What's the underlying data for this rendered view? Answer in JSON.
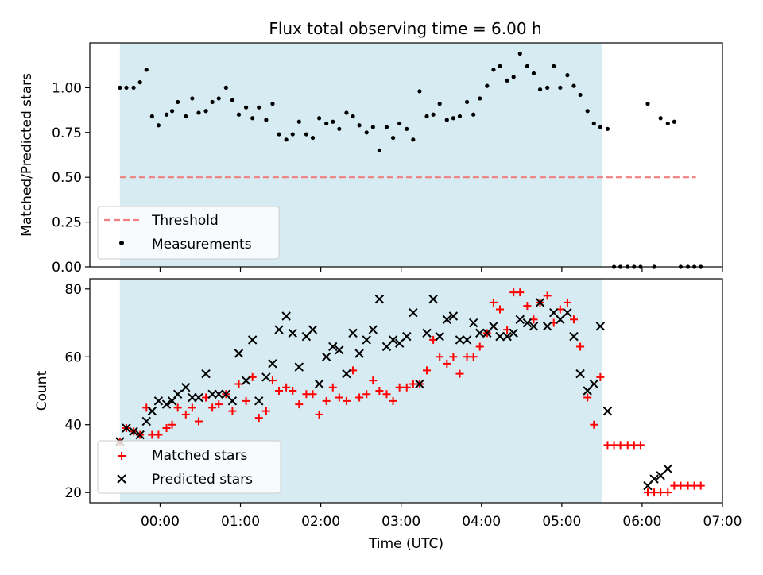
{
  "figure": {
    "title": "Flux total observing time = 6.00 h"
  },
  "chart_data": [
    {
      "type": "scatter",
      "ylabel": "Matched/Predicted stars",
      "xlabel": "",
      "xlim": [
        -0.875,
        7.0
      ],
      "ylim": [
        0,
        1.25
      ],
      "yticks": [
        0.0,
        0.25,
        0.5,
        0.75,
        1.0
      ],
      "ytick_labels": [
        "0.00",
        "0.25",
        "0.50",
        "0.75",
        "1.00"
      ],
      "xticks": [
        0,
        1,
        2,
        3,
        4,
        5,
        6,
        7
      ],
      "shaded_region": {
        "x": [
          -0.5,
          5.5
        ],
        "color": "#add8e6"
      },
      "threshold": {
        "name": "Threshold",
        "y": 0.5,
        "x": [
          -0.5,
          6.67
        ],
        "color": "#f08080"
      },
      "legend": {
        "position": "lower-left",
        "entries": [
          {
            "label": "Threshold",
            "marker": "dashed-line",
            "color": "#f08080"
          },
          {
            "label": "Measurements",
            "marker": "dot",
            "color": "#000000"
          }
        ]
      },
      "series": [
        {
          "name": "Measurements",
          "color": "#000000",
          "marker": "dot",
          "points": [
            [
              -0.5,
              1.0
            ],
            [
              -0.42,
              1.0
            ],
            [
              -0.33,
              1.0
            ],
            [
              -0.25,
              1.03
            ],
            [
              -0.17,
              1.1
            ],
            [
              -0.1,
              0.84
            ],
            [
              -0.02,
              0.79
            ],
            [
              0.08,
              0.85
            ],
            [
              0.15,
              0.87
            ],
            [
              0.22,
              0.92
            ],
            [
              0.32,
              0.84
            ],
            [
              0.4,
              0.94
            ],
            [
              0.48,
              0.86
            ],
            [
              0.57,
              0.87
            ],
            [
              0.65,
              0.92
            ],
            [
              0.73,
              0.94
            ],
            [
              0.82,
              1.0
            ],
            [
              0.9,
              0.93
            ],
            [
              0.98,
              0.85
            ],
            [
              1.07,
              0.89
            ],
            [
              1.15,
              0.83
            ],
            [
              1.23,
              0.89
            ],
            [
              1.32,
              0.82
            ],
            [
              1.4,
              0.91
            ],
            [
              1.48,
              0.74
            ],
            [
              1.57,
              0.71
            ],
            [
              1.65,
              0.74
            ],
            [
              1.73,
              0.81
            ],
            [
              1.82,
              0.74
            ],
            [
              1.9,
              0.72
            ],
            [
              1.98,
              0.83
            ],
            [
              2.07,
              0.8
            ],
            [
              2.15,
              0.81
            ],
            [
              2.23,
              0.77
            ],
            [
              2.32,
              0.86
            ],
            [
              2.4,
              0.84
            ],
            [
              2.48,
              0.79
            ],
            [
              2.57,
              0.75
            ],
            [
              2.65,
              0.78
            ],
            [
              2.73,
              0.65
            ],
            [
              2.82,
              0.78
            ],
            [
              2.9,
              0.72
            ],
            [
              2.98,
              0.8
            ],
            [
              3.07,
              0.77
            ],
            [
              3.15,
              0.71
            ],
            [
              3.23,
              0.98
            ],
            [
              3.32,
              0.84
            ],
            [
              3.4,
              0.85
            ],
            [
              3.48,
              0.91
            ],
            [
              3.57,
              0.82
            ],
            [
              3.65,
              0.83
            ],
            [
              3.73,
              0.84
            ],
            [
              3.82,
              0.92
            ],
            [
              3.9,
              0.85
            ],
            [
              3.98,
              0.94
            ],
            [
              4.07,
              1.01
            ],
            [
              4.15,
              1.1
            ],
            [
              4.23,
              1.12
            ],
            [
              4.32,
              1.04
            ],
            [
              4.4,
              1.06
            ],
            [
              4.48,
              1.19
            ],
            [
              4.57,
              1.12
            ],
            [
              4.65,
              1.08
            ],
            [
              4.73,
              0.99
            ],
            [
              4.82,
              1.0
            ],
            [
              4.9,
              1.12
            ],
            [
              4.98,
              1.0
            ],
            [
              5.07,
              1.07
            ],
            [
              5.15,
              1.01
            ],
            [
              5.23,
              0.96
            ],
            [
              5.32,
              0.87
            ],
            [
              5.4,
              0.8
            ],
            [
              5.48,
              0.78
            ],
            [
              5.57,
              0.77
            ],
            [
              5.65,
              0.0
            ],
            [
              5.73,
              0.0
            ],
            [
              5.82,
              0.0
            ],
            [
              5.9,
              0.0
            ],
            [
              5.98,
              0.0
            ],
            [
              6.07,
              0.91
            ],
            [
              6.15,
              0.0
            ],
            [
              6.23,
              0.83
            ],
            [
              6.32,
              0.8
            ],
            [
              6.4,
              0.81
            ],
            [
              6.48,
              0.0
            ],
            [
              6.57,
              0.0
            ],
            [
              6.65,
              0.0
            ],
            [
              6.73,
              0.0
            ]
          ]
        }
      ]
    },
    {
      "type": "scatter",
      "xlabel": "Time (UTC)",
      "ylabel": "Count",
      "xlim": [
        -0.875,
        7.0
      ],
      "ylim": [
        17,
        83
      ],
      "yticks": [
        20,
        40,
        60,
        80
      ],
      "xticks": [
        0,
        1,
        2,
        3,
        4,
        5,
        6,
        7
      ],
      "xtick_labels": [
        "00:00",
        "01:00",
        "02:00",
        "03:00",
        "04:00",
        "05:00",
        "06:00",
        "07:00"
      ],
      "shaded_region": {
        "x": [
          -0.5,
          5.5
        ],
        "color": "#add8e6"
      },
      "legend": {
        "position": "lower-left",
        "entries": [
          {
            "label": "Matched stars",
            "marker": "plus",
            "color": "#ff0000"
          },
          {
            "label": "Predicted stars",
            "marker": "x",
            "color": "#000000"
          }
        ]
      },
      "series": [
        {
          "name": "Matched stars",
          "color": "#ff0000",
          "marker": "plus",
          "points": [
            [
              -0.5,
              35
            ],
            [
              -0.42,
              39
            ],
            [
              -0.33,
              38
            ],
            [
              -0.25,
              37
            ],
            [
              -0.17,
              45
            ],
            [
              -0.1,
              37
            ],
            [
              -0.02,
              37
            ],
            [
              0.08,
              39
            ],
            [
              0.15,
              40
            ],
            [
              0.22,
              45
            ],
            [
              0.32,
              43
            ],
            [
              0.4,
              45
            ],
            [
              0.48,
              41
            ],
            [
              0.57,
              48
            ],
            [
              0.65,
              45
            ],
            [
              0.73,
              46
            ],
            [
              0.82,
              49
            ],
            [
              0.9,
              44
            ],
            [
              0.98,
              52
            ],
            [
              1.07,
              47
            ],
            [
              1.15,
              54
            ],
            [
              1.23,
              42
            ],
            [
              1.32,
              44
            ],
            [
              1.4,
              53
            ],
            [
              1.48,
              50
            ],
            [
              1.57,
              51
            ],
            [
              1.65,
              50
            ],
            [
              1.73,
              46
            ],
            [
              1.82,
              49
            ],
            [
              1.9,
              49
            ],
            [
              1.98,
              43
            ],
            [
              2.07,
              47
            ],
            [
              2.15,
              51
            ],
            [
              2.23,
              48
            ],
            [
              2.32,
              47
            ],
            [
              2.4,
              56
            ],
            [
              2.48,
              48
            ],
            [
              2.57,
              49
            ],
            [
              2.65,
              53
            ],
            [
              2.73,
              50
            ],
            [
              2.82,
              49
            ],
            [
              2.9,
              47
            ],
            [
              2.98,
              51
            ],
            [
              3.07,
              51
            ],
            [
              3.15,
              52
            ],
            [
              3.23,
              52
            ],
            [
              3.32,
              56
            ],
            [
              3.4,
              65
            ],
            [
              3.48,
              60
            ],
            [
              3.57,
              58
            ],
            [
              3.65,
              60
            ],
            [
              3.73,
              55
            ],
            [
              3.82,
              60
            ],
            [
              3.9,
              60
            ],
            [
              3.98,
              63
            ],
            [
              4.07,
              67
            ],
            [
              4.15,
              76
            ],
            [
              4.23,
              74
            ],
            [
              4.32,
              68
            ],
            [
              4.4,
              79
            ],
            [
              4.48,
              79
            ],
            [
              4.57,
              75
            ],
            [
              4.65,
              71
            ],
            [
              4.73,
              76
            ],
            [
              4.82,
              78
            ],
            [
              4.9,
              70
            ],
            [
              4.98,
              74
            ],
            [
              5.07,
              76
            ],
            [
              5.15,
              71
            ],
            [
              5.23,
              63
            ],
            [
              5.32,
              48
            ],
            [
              5.4,
              40
            ],
            [
              5.48,
              54
            ],
            [
              5.57,
              34
            ],
            [
              5.65,
              34
            ],
            [
              5.73,
              34
            ],
            [
              5.82,
              34
            ],
            [
              5.9,
              34
            ],
            [
              5.98,
              34
            ],
            [
              6.07,
              20
            ],
            [
              6.15,
              20
            ],
            [
              6.23,
              20
            ],
            [
              6.32,
              20
            ],
            [
              6.4,
              22
            ],
            [
              6.48,
              22
            ],
            [
              6.57,
              22
            ],
            [
              6.65,
              22
            ],
            [
              6.73,
              22
            ]
          ]
        },
        {
          "name": "Predicted stars",
          "color": "#000000",
          "marker": "x",
          "points": [
            [
              -0.5,
              35
            ],
            [
              -0.42,
              39
            ],
            [
              -0.33,
              38
            ],
            [
              -0.25,
              37
            ],
            [
              -0.17,
              41
            ],
            [
              -0.1,
              44
            ],
            [
              -0.02,
              47
            ],
            [
              0.08,
              46
            ],
            [
              0.15,
              47
            ],
            [
              0.22,
              49
            ],
            [
              0.32,
              51
            ],
            [
              0.4,
              48
            ],
            [
              0.48,
              48
            ],
            [
              0.57,
              55
            ],
            [
              0.65,
              49
            ],
            [
              0.73,
              49
            ],
            [
              0.82,
              49
            ],
            [
              0.9,
              47
            ],
            [
              0.98,
              61
            ],
            [
              1.07,
              53
            ],
            [
              1.15,
              65
            ],
            [
              1.23,
              47
            ],
            [
              1.32,
              54
            ],
            [
              1.4,
              58
            ],
            [
              1.48,
              68
            ],
            [
              1.57,
              72
            ],
            [
              1.65,
              67
            ],
            [
              1.73,
              57
            ],
            [
              1.82,
              66
            ],
            [
              1.9,
              68
            ],
            [
              1.98,
              52
            ],
            [
              2.07,
              60
            ],
            [
              2.15,
              63
            ],
            [
              2.23,
              62
            ],
            [
              2.32,
              55
            ],
            [
              2.4,
              67
            ],
            [
              2.48,
              61
            ],
            [
              2.57,
              65
            ],
            [
              2.65,
              68
            ],
            [
              2.73,
              77
            ],
            [
              2.82,
              63
            ],
            [
              2.9,
              65
            ],
            [
              2.98,
              64
            ],
            [
              3.07,
              66
            ],
            [
              3.15,
              73
            ],
            [
              3.23,
              52
            ],
            [
              3.32,
              67
            ],
            [
              3.4,
              77
            ],
            [
              3.48,
              66
            ],
            [
              3.57,
              71
            ],
            [
              3.65,
              72
            ],
            [
              3.73,
              65
            ],
            [
              3.82,
              65
            ],
            [
              3.9,
              70
            ],
            [
              3.98,
              67
            ],
            [
              4.07,
              67
            ],
            [
              4.15,
              69
            ],
            [
              4.23,
              66
            ],
            [
              4.32,
              66
            ],
            [
              4.4,
              67
            ],
            [
              4.48,
              71
            ],
            [
              4.57,
              70
            ],
            [
              4.65,
              69
            ],
            [
              4.73,
              76
            ],
            [
              4.82,
              69
            ],
            [
              4.9,
              73
            ],
            [
              4.98,
              71
            ],
            [
              5.07,
              73
            ],
            [
              5.15,
              66
            ],
            [
              5.23,
              55
            ],
            [
              5.32,
              50
            ],
            [
              5.4,
              52
            ],
            [
              5.48,
              69
            ],
            [
              5.57,
              44
            ],
            [
              6.07,
              22
            ],
            [
              6.15,
              24
            ],
            [
              6.23,
              25
            ],
            [
              6.32,
              27
            ]
          ]
        }
      ]
    }
  ]
}
